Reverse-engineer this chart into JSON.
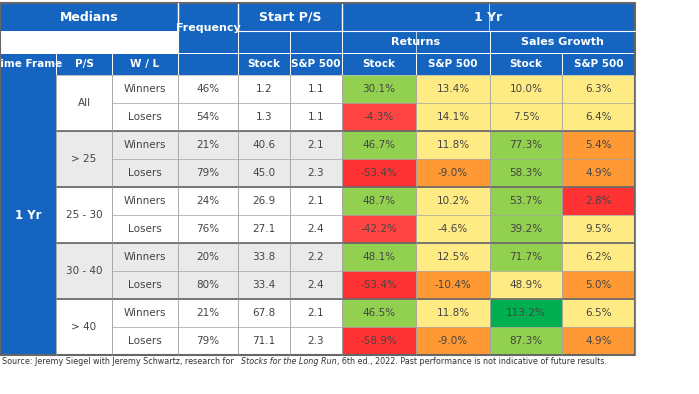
{
  "ps_groups": [
    "All",
    "> 25",
    "25 - 30",
    "30 - 40",
    "> 40"
  ],
  "wl_labels": [
    "Winners",
    "Losers"
  ],
  "frequencies": [
    [
      "46%",
      "54%"
    ],
    [
      "21%",
      "79%"
    ],
    [
      "24%",
      "76%"
    ],
    [
      "20%",
      "80%"
    ],
    [
      "21%",
      "79%"
    ]
  ],
  "start_ps_stock": [
    [
      "1.2",
      "1.3"
    ],
    [
      "40.6",
      "45.0"
    ],
    [
      "26.9",
      "27.1"
    ],
    [
      "33.8",
      "33.4"
    ],
    [
      "67.8",
      "71.1"
    ]
  ],
  "start_ps_sp500": [
    [
      "1.1",
      "1.1"
    ],
    [
      "2.1",
      "2.3"
    ],
    [
      "2.1",
      "2.4"
    ],
    [
      "2.2",
      "2.4"
    ],
    [
      "2.1",
      "2.3"
    ]
  ],
  "returns_stock": [
    [
      "30.1%",
      "-4.3%"
    ],
    [
      "46.7%",
      "-53.4%"
    ],
    [
      "48.7%",
      "-42.2%"
    ],
    [
      "48.1%",
      "-53.4%"
    ],
    [
      "46.5%",
      "-58.9%"
    ]
  ],
  "returns_sp500": [
    [
      "13.4%",
      "14.1%"
    ],
    [
      "11.8%",
      "-9.0%"
    ],
    [
      "10.2%",
      "-4.6%"
    ],
    [
      "12.5%",
      "-10.4%"
    ],
    [
      "11.8%",
      "-9.0%"
    ]
  ],
  "sales_growth_stock": [
    [
      "10.0%",
      "7.5%"
    ],
    [
      "77.3%",
      "58.3%"
    ],
    [
      "53.7%",
      "39.2%"
    ],
    [
      "71.7%",
      "48.9%"
    ],
    [
      "113.2%",
      "87.3%"
    ]
  ],
  "sales_growth_sp500": [
    [
      "6.3%",
      "6.4%"
    ],
    [
      "5.4%",
      "4.9%"
    ],
    [
      "2.8%",
      "9.5%"
    ],
    [
      "6.2%",
      "5.0%"
    ],
    [
      "6.5%",
      "4.9%"
    ]
  ],
  "cell_colors": {
    "returns_stock_w": [
      "#92D050",
      "#92D050",
      "#92D050",
      "#92D050",
      "#92D050"
    ],
    "returns_stock_l": [
      "#FF4444",
      "#FF3333",
      "#FF4444",
      "#FF3333",
      "#FF3333"
    ],
    "returns_sp500_w": [
      "#FFEB84",
      "#FFEB84",
      "#FFEB84",
      "#FFEB84",
      "#FFEB84"
    ],
    "returns_sp500_l": [
      "#FFEB84",
      "#FF9933",
      "#FFEB84",
      "#FF9933",
      "#FF9933"
    ],
    "sales_growth_stock_w": [
      "#FFEB84",
      "#92D050",
      "#92D050",
      "#92D050",
      "#00B050"
    ],
    "sales_growth_stock_l": [
      "#FFEB84",
      "#92D050",
      "#92D050",
      "#FFEB84",
      "#92D050"
    ],
    "sales_growth_sp500_w": [
      "#FFEB84",
      "#FF9933",
      "#FF3333",
      "#FFEB84",
      "#FFEB84"
    ],
    "sales_growth_sp500_l": [
      "#FFEB84",
      "#FF9933",
      "#FFEB84",
      "#FF9933",
      "#FF9933"
    ]
  },
  "group_bg": [
    "#FFFFFF",
    "#EAEAEA",
    "#FFFFFF",
    "#EAEAEA",
    "#FFFFFF"
  ],
  "hdr_blue": "#1565C0",
  "source_text": "Source: Jeremy Siegel with Jeremy Schwartz, research for ",
  "source_italic": "Stocks for the Long Run",
  "source_tail": ", 6th ed., 2022. Past performance is not indicative of future results."
}
